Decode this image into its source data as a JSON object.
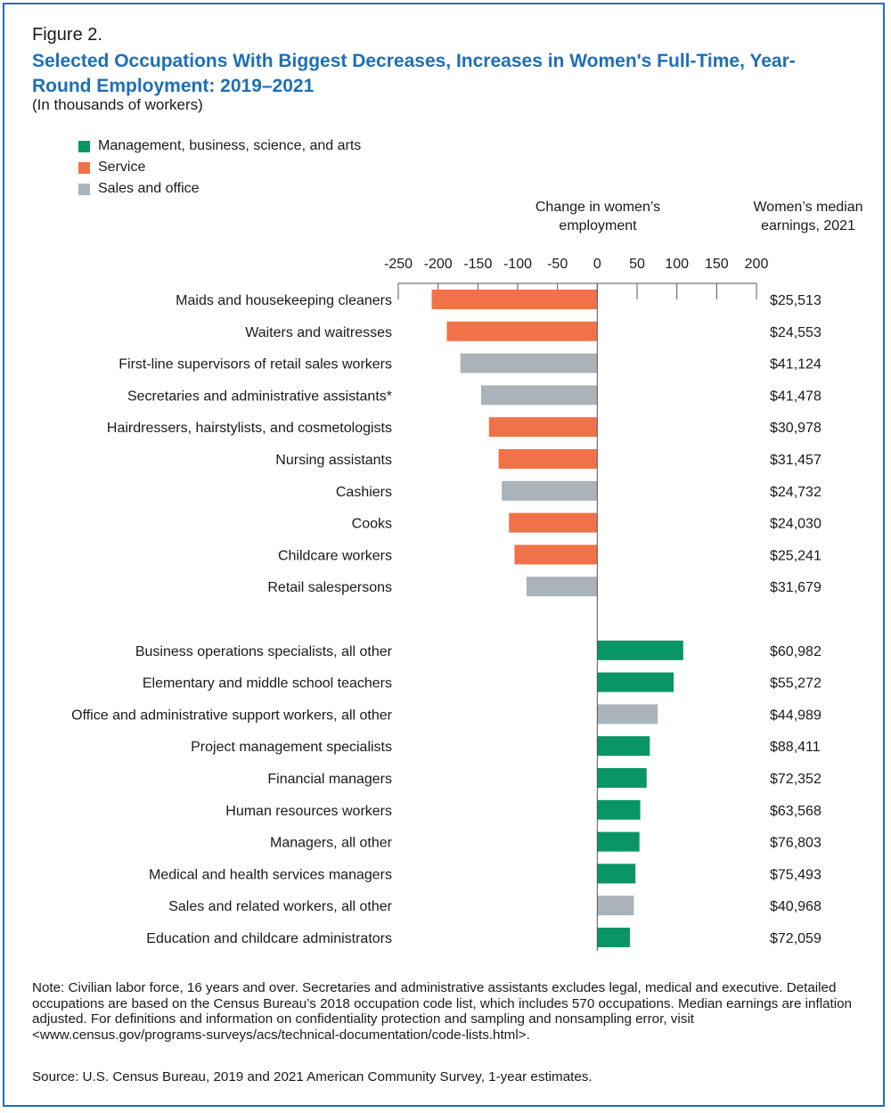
{
  "figure_label": "Figure 2.",
  "title": "Selected Occupations With Biggest Decreases, Increases in Women's Full-Time, Year-Round Employment: 2019–2021",
  "subtitle": "(In thousands of workers)",
  "legend": [
    {
      "label": "Management, business, science, and arts",
      "color": "#0a9564"
    },
    {
      "label": "Service",
      "color": "#f07249"
    },
    {
      "label": "Sales and office",
      "color": "#aab3ba"
    }
  ],
  "column_headers": {
    "change": "Change in women’s employment",
    "earnings": "Women’s median earnings, 2021"
  },
  "note": "Note: Civilian labor force, 16 years and over. Secretaries and administrative assistants excludes legal, medical and executive. Detailed occupations are based on the Census Bureau’s 2018 occupation code list, which includes 570 occupations. Median earnings are inflation adjusted. For definitions and information on confidentiality protection and sampling and nonsampling error, visit <www.census.gov/programs-surveys/acs/technical-documentation/code-lists.html>.",
  "source": "Source: U.S. Census Bureau, 2019 and 2021 American Community Survey, 1-year estimates.",
  "chart_data": {
    "type": "bar",
    "orientation": "horizontal",
    "xlim": [
      -250,
      200
    ],
    "x_ticks": [
      -250,
      -200,
      -150,
      -100,
      -50,
      0,
      50,
      100,
      150,
      200
    ],
    "category_colors": {
      "Management, business, science, and arts": "#0a9564",
      "Service": "#f07249",
      "Sales and office": "#aab3ba"
    },
    "groups": [
      {
        "rows": [
          {
            "label": "Maids and housekeeping cleaners",
            "value": -208,
            "category": "Service",
            "earnings": "$25,513"
          },
          {
            "label": "Waiters and waitresses",
            "value": -189,
            "category": "Service",
            "earnings": "$24,553"
          },
          {
            "label": "First-line supervisors of retail sales workers",
            "value": -172,
            "category": "Sales and office",
            "earnings": "$41,124"
          },
          {
            "label": "Secretaries and administrative assistants*",
            "value": -146,
            "category": "Sales and office",
            "earnings": "$41,478"
          },
          {
            "label": "Hairdressers, hairstylists, and cosmetologists",
            "value": -136,
            "category": "Service",
            "earnings": "$30,978"
          },
          {
            "label": "Nursing assistants",
            "value": -124,
            "category": "Service",
            "earnings": "$31,457"
          },
          {
            "label": "Cashiers",
            "value": -120,
            "category": "Sales and office",
            "earnings": "$24,732"
          },
          {
            "label": "Cooks",
            "value": -111,
            "category": "Service",
            "earnings": "$24,030"
          },
          {
            "label": "Childcare workers",
            "value": -104,
            "category": "Service",
            "earnings": "$25,241"
          },
          {
            "label": "Retail salespersons",
            "value": -89,
            "category": "Sales and office",
            "earnings": "$31,679"
          }
        ]
      },
      {
        "rows": [
          {
            "label": "Business operations specialists, all other",
            "value": 108,
            "category": "Management, business, science, and arts",
            "earnings": "$60,982"
          },
          {
            "label": "Elementary and middle school teachers",
            "value": 96,
            "category": "Management, business, science, and arts",
            "earnings": "$55,272"
          },
          {
            "label": "Office and administrative support workers, all other",
            "value": 76,
            "category": "Sales and office",
            "earnings": "$44,989"
          },
          {
            "label": "Project management specialists",
            "value": 66,
            "category": "Management, business, science, and arts",
            "earnings": "$88,411"
          },
          {
            "label": "Financial managers",
            "value": 62,
            "category": "Management, business, science, and arts",
            "earnings": "$72,352"
          },
          {
            "label": "Human resources workers",
            "value": 54,
            "category": "Management, business, science, and arts",
            "earnings": "$63,568"
          },
          {
            "label": "Managers, all other",
            "value": 53,
            "category": "Management, business, science, and arts",
            "earnings": "$76,803"
          },
          {
            "label": "Medical and health services managers",
            "value": 48,
            "category": "Management, business, science, and arts",
            "earnings": "$75,493"
          },
          {
            "label": "Sales and related workers, all other",
            "value": 46,
            "category": "Sales and office",
            "earnings": "$40,968"
          },
          {
            "label": "Education and childcare administrators",
            "value": 41,
            "category": "Management, business, science, and arts",
            "earnings": "$72,059"
          }
        ]
      }
    ]
  }
}
